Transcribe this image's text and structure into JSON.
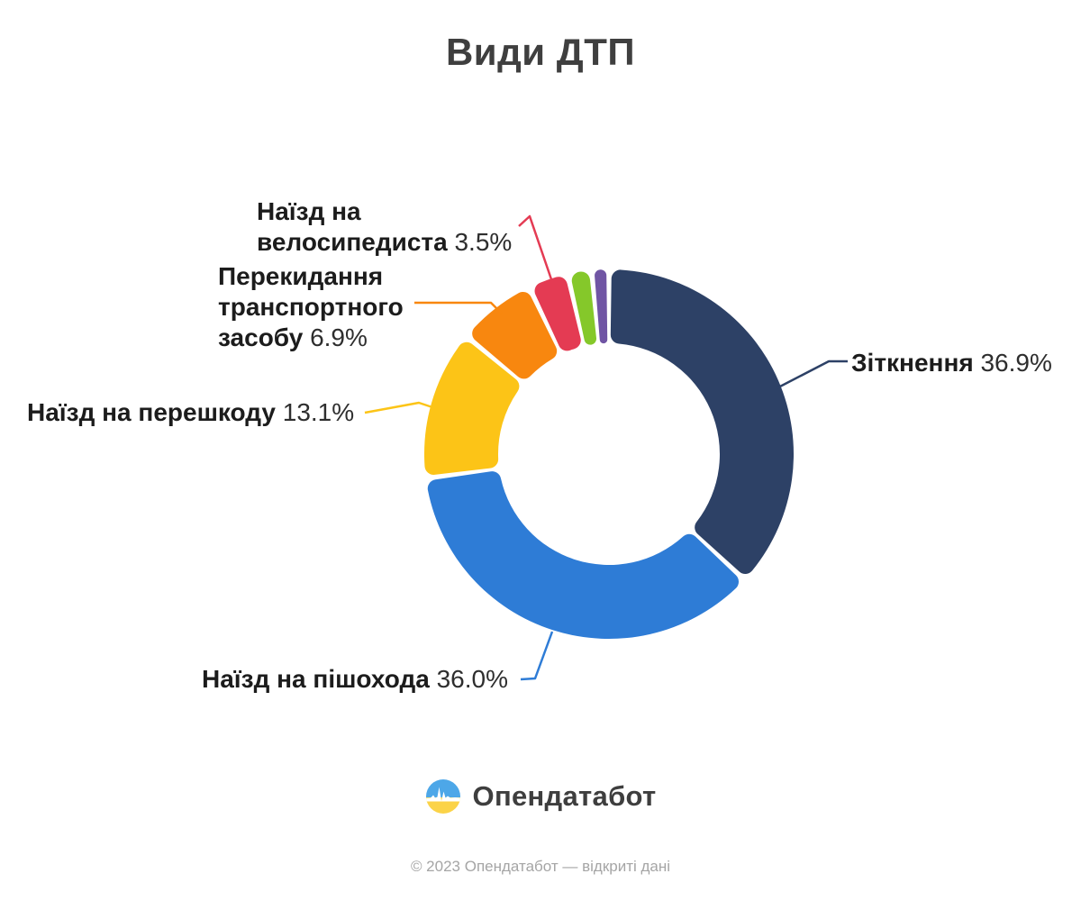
{
  "title": "Види ДТП",
  "chart_data": {
    "type": "pie",
    "subtype": "donut",
    "title": "Види ДТП",
    "units": "%",
    "start_angle_deg": 0,
    "direction": "clockwise",
    "inner_radius_ratio": 0.6,
    "total": 100,
    "slices": [
      {
        "id": "collision",
        "label": "Зіткнення",
        "value": 36.9,
        "display": "36.9%",
        "color": "#2d4166"
      },
      {
        "id": "pedestrian",
        "label": "Наїзд на пішохода",
        "value": 36.0,
        "display": "36.0%",
        "color": "#2e7cd6"
      },
      {
        "id": "obstacle",
        "label": "Наїзд на перешкоду",
        "value": 13.1,
        "display": "13.1%",
        "color": "#fcc417"
      },
      {
        "id": "rollover",
        "label": "Перекидання транспортного засобу",
        "value": 6.9,
        "display": "6.9%",
        "color": "#f8870f"
      },
      {
        "id": "cyclist",
        "label": "Наїзд на велосипедиста",
        "value": 3.5,
        "display": "3.5%",
        "color": "#e43b53"
      },
      {
        "id": "other-green",
        "label": "",
        "value": 2.1,
        "display": "",
        "color": "#85c82a"
      },
      {
        "id": "other-purple",
        "label": "",
        "value": 1.5,
        "display": "",
        "color": "#7055a4"
      }
    ],
    "callouts": [
      {
        "slice": "collision",
        "name_lines": [
          "Зіткнення"
        ],
        "pct": "36.9%"
      },
      {
        "slice": "pedestrian",
        "name_lines": [
          "Наїзд на пішохода"
        ],
        "pct": "36.0%"
      },
      {
        "slice": "obstacle",
        "name_lines": [
          "Наїзд на перешкоду"
        ],
        "pct": "13.1%"
      },
      {
        "slice": "rollover",
        "name_lines": [
          "Перекидання",
          "транспортного",
          "засобу"
        ],
        "pct": "6.9%"
      },
      {
        "slice": "cyclist",
        "name_lines": [
          "Наїзд на",
          "велосипедиста"
        ],
        "pct": "3.5%"
      }
    ]
  },
  "logo": {
    "text": "Опендатабот",
    "icon": "pulse-flag-icon",
    "icon_colors": {
      "top": "#4da7e8",
      "bottom": "#fbd348",
      "pulse": "#ffffff"
    }
  },
  "footer": {
    "text": "© 2023 Опендатабот — відкриті дані"
  }
}
